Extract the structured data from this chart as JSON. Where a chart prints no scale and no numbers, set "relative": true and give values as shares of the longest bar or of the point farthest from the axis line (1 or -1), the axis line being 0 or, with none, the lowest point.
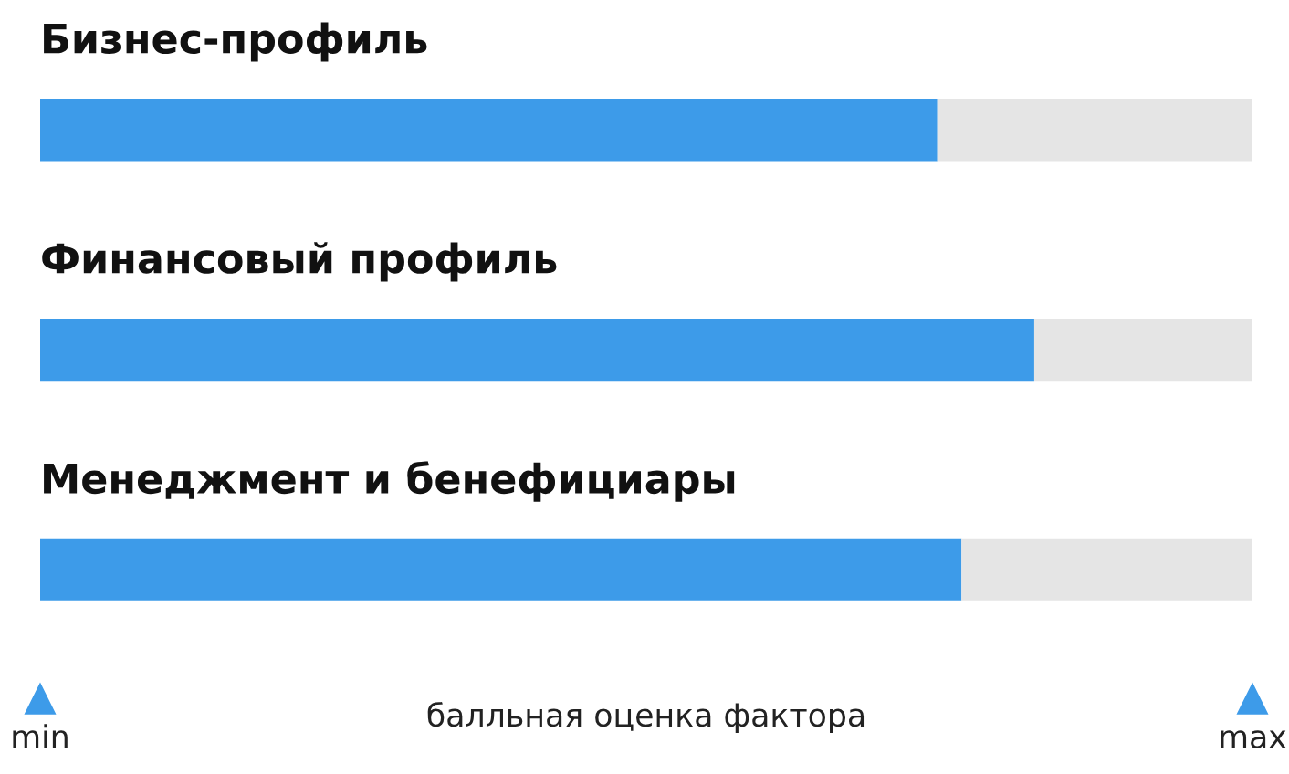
{
  "chart_data": {
    "type": "bar",
    "orientation": "horizontal",
    "relative": true,
    "stacked": true,
    "categories": [
      "Бизнес-профиль",
      "Финансовый профиль",
      "Менеджмент и бенефициары"
    ],
    "series": [
      {
        "color": "#3d9be9",
        "values": [
          0.74,
          0.82,
          0.76
        ]
      },
      {
        "color": "#e5e5e5",
        "values": [
          0.26,
          0.18,
          0.24
        ]
      }
    ],
    "annotations": [
      "min",
      "max"
    ],
    "xlabel": "балльная оценка фактора"
  }
}
